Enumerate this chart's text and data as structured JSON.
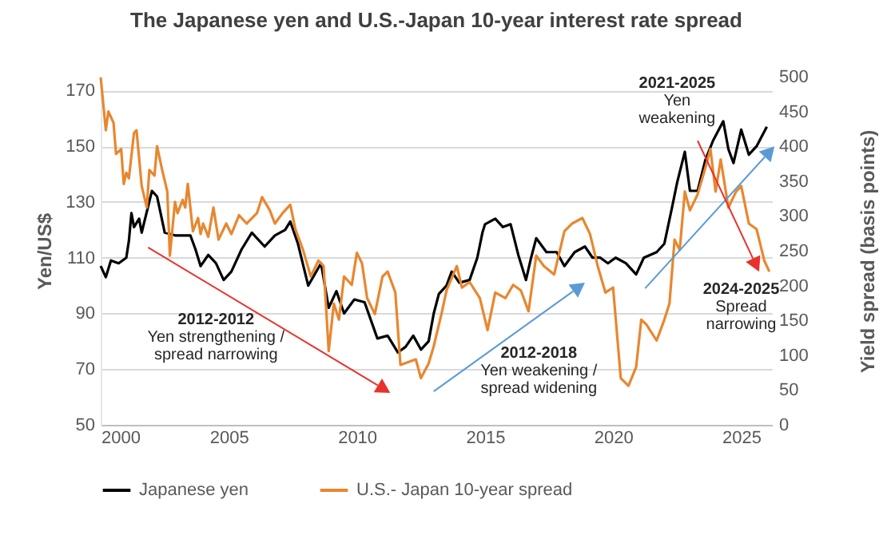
{
  "chart_data": {
    "type": "line",
    "title": "The Japanese yen and U.S.-Japan 10-year interest rate spread",
    "ylabel": "Yen/US$",
    "y2label": "Yield spread (basis points)",
    "xlim": [
      2000,
      2026.2
    ],
    "xticks": [
      2000,
      2005,
      2010,
      2015,
      2020,
      2025
    ],
    "ylim": [
      50,
      175
    ],
    "yticks": [
      50,
      70,
      90,
      110,
      130,
      150,
      170
    ],
    "y2lim": [
      0,
      500
    ],
    "y2ticks": [
      0,
      50,
      100,
      150,
      200,
      250,
      300,
      350,
      400,
      450,
      500
    ],
    "grid": "y",
    "legend": "bottom",
    "annotations": [
      "2012-2012\nYen strengthening /\nspread narrowing",
      "2012-2018\nYen weakening /\nspread widening",
      "2021-2025\nYen\nweakening",
      "2024-2025\nSpread\nnarrowing"
    ],
    "series": [
      {
        "name": "Japanese yen",
        "color": "#000000",
        "x": [
          2000,
          2000.2,
          2000.4,
          2000.7,
          2001,
          2001.1,
          2001.2,
          2001.3,
          2001.5,
          2001.6,
          2002,
          2002.2,
          2002.5,
          2002.9,
          2003.5,
          2003.7,
          2003.9,
          2004.2,
          2004.5,
          2004.8,
          2005.1,
          2005.5,
          2005.9,
          2006.4,
          2006.8,
          2007.2,
          2007.4,
          2007.7,
          2008.1,
          2008.6,
          2008.9,
          2009.2,
          2009.5,
          2009.9,
          2010.3,
          2010.8,
          2011.2,
          2011.6,
          2011.9,
          2012.2,
          2012.5,
          2012.8,
          2013,
          2013.2,
          2013.5,
          2013.7,
          2014,
          2014.4,
          2014.7,
          2014.9,
          2015,
          2015.4,
          2015.7,
          2016,
          2016.3,
          2016.6,
          2016.8,
          2017,
          2017.4,
          2017.8,
          2018.1,
          2018.5,
          2018.9,
          2019.2,
          2019.5,
          2019.8,
          2020.1,
          2020.5,
          2020.9,
          2021.2,
          2021.7,
          2022,
          2022.3,
          2022.5,
          2022.8,
          2023,
          2023.3,
          2023.6,
          2023.9,
          2024.3,
          2024.5,
          2024.7,
          2025,
          2025.3,
          2025.6,
          2026
        ],
        "values": [
          107,
          103,
          109,
          108,
          110,
          116,
          126,
          121,
          124,
          119,
          134,
          132,
          119,
          118,
          118,
          113,
          107,
          111,
          108,
          102,
          105,
          113,
          119,
          114,
          118,
          120,
          123,
          115,
          100,
          108,
          92,
          98,
          90,
          95,
          94,
          81,
          82,
          76,
          78,
          82,
          77,
          80,
          90,
          97,
          100,
          105,
          101,
          102,
          110,
          119,
          122,
          124,
          121,
          122,
          111,
          102,
          110,
          117,
          112,
          112,
          107,
          112,
          114,
          110,
          110,
          108,
          110,
          108,
          104,
          110,
          112,
          115,
          128,
          137,
          148,
          134,
          134,
          145,
          152,
          159,
          149,
          144,
          156,
          147,
          150,
          157
        ]
      },
      {
        "name": "U.S.- Japan 10-year spread",
        "color": "#e8872f",
        "axis": "y2",
        "x": [
          2000,
          2000.2,
          2000.3,
          2000.5,
          2000.6,
          2000.8,
          2000.9,
          2001,
          2001.1,
          2001.3,
          2001.4,
          2001.6,
          2001.8,
          2001.9,
          2002.1,
          2002.2,
          2002.4,
          2002.6,
          2002.7,
          2002.9,
          2003,
          2003.2,
          2003.3,
          2003.4,
          2003.6,
          2003.8,
          2003.9,
          2004,
          2004.2,
          2004.4,
          2004.6,
          2004.9,
          2005.1,
          2005.4,
          2005.7,
          2006.1,
          2006.3,
          2006.6,
          2006.8,
          2007.1,
          2007.4,
          2007.6,
          2007.9,
          2008.2,
          2008.5,
          2008.7,
          2008.9,
          2009.1,
          2009.3,
          2009.5,
          2009.8,
          2010,
          2010.2,
          2010.4,
          2010.7,
          2011,
          2011.2,
          2011.5,
          2011.7,
          2012,
          2012.3,
          2012.5,
          2012.8,
          2013,
          2013.3,
          2013.5,
          2013.9,
          2014.1,
          2014.4,
          2014.8,
          2015.1,
          2015.4,
          2015.8,
          2016.1,
          2016.4,
          2016.7,
          2017,
          2017.3,
          2017.7,
          2018.1,
          2018.4,
          2018.8,
          2019.1,
          2019.4,
          2019.7,
          2020,
          2020.3,
          2020.6,
          2020.9,
          2021.1,
          2021.3,
          2021.7,
          2022,
          2022.2,
          2022.4,
          2022.6,
          2022.8,
          2023,
          2023.3,
          2023.6,
          2023.8,
          2024,
          2024.2,
          2024.5,
          2024.8,
          2025,
          2025.3,
          2025.6,
          2025.9,
          2026.1
        ],
        "values": [
          499,
          423,
          450,
          434,
          389,
          396,
          346,
          362,
          354,
          419,
          423,
          343,
          312,
          366,
          358,
          400,
          366,
          335,
          243,
          320,
          304,
          323,
          312,
          346,
          278,
          297,
          274,
          289,
          270,
          312,
          266,
          289,
          274,
          301,
          289,
          304,
          327,
          308,
          289,
          304,
          316,
          281,
          251,
          213,
          236,
          228,
          106,
          174,
          151,
          213,
          201,
          247,
          232,
          182,
          159,
          213,
          220,
          190,
          86,
          90,
          94,
          67,
          88,
          113,
          159,
          193,
          228,
          197,
          205,
          182,
          136,
          190,
          182,
          201,
          193,
          163,
          243,
          228,
          216,
          278,
          289,
          297,
          274,
          228,
          190,
          197,
          67,
          56,
          83,
          151,
          144,
          121,
          151,
          174,
          266,
          251,
          335,
          308,
          331,
          369,
          396,
          335,
          381,
          312,
          335,
          343,
          289,
          281,
          236,
          220
        ]
      }
    ]
  }
}
